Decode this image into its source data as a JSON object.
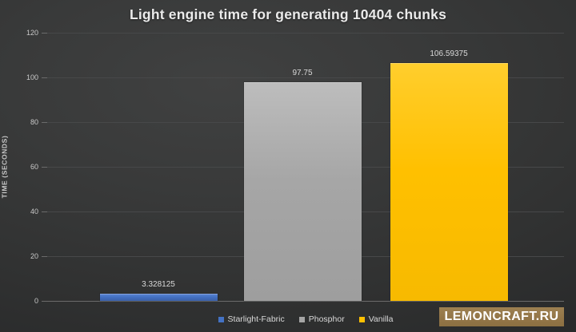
{
  "chart_data": {
    "type": "bar",
    "title": "Light engine time for generating 10404 chunks",
    "xlabel": "",
    "ylabel": "TIME (SECONDS)",
    "ylim": [
      0,
      120
    ],
    "yticks": [
      0,
      20,
      40,
      60,
      80,
      100,
      120
    ],
    "grid": true,
    "legend_position": "bottom",
    "categories": [
      "Starlight-Fabric",
      "Phosphor",
      "Vanilla"
    ],
    "values": [
      3.328125,
      97.75,
      106.59375
    ],
    "series": [
      {
        "name": "Starlight-Fabric",
        "value": 3.328125,
        "label": "3.328125",
        "color": "#4472C4",
        "color_top": "#5c86d2",
        "color_bottom": "#3a5fa8"
      },
      {
        "name": "Phosphor",
        "value": 97.75,
        "label": "97.75",
        "color": "#A6A6A6",
        "color_top": "#bdbdbd",
        "color_bottom": "#9e9e9e"
      },
      {
        "name": "Vanilla",
        "value": 106.59375,
        "label": "106.59375",
        "color": "#FFC000",
        "color_top": "#ffce2d",
        "color_bottom": "#f7ba00"
      }
    ]
  },
  "watermark": {
    "label": "LEMONCRAFT.RU",
    "bg_color": "#947648",
    "text_color": "#FFFFFF"
  }
}
